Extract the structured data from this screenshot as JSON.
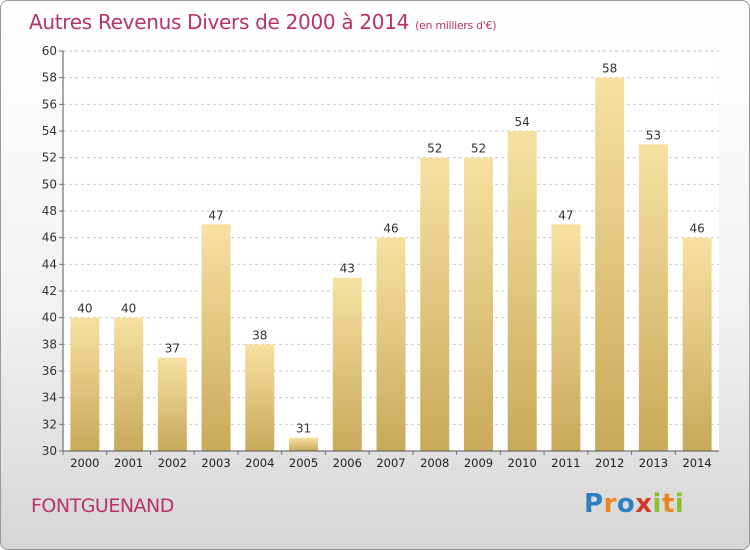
{
  "title": "Autres Revenus Divers de 2000 à 2014",
  "unit_note": "(en milliers d'€)",
  "location": "FONTGUENAND",
  "brand": {
    "letters": [
      "P",
      "r",
      "o",
      "x",
      "i",
      "t",
      "i"
    ],
    "colors": [
      "#2f7fc1",
      "#e8871e",
      "#2f7fc1",
      "#d23a2a",
      "#8bbf2e",
      "#e8871e",
      "#8bbf2e"
    ]
  },
  "colors": {
    "title": "#b8326a",
    "bar_light": "#f7e1a1",
    "bar_dark": "#c9a95a",
    "grid": "#cccccc"
  },
  "chart_data": {
    "type": "bar",
    "categories": [
      "2000",
      "2001",
      "2002",
      "2003",
      "2004",
      "2005",
      "2006",
      "2007",
      "2008",
      "2009",
      "2010",
      "2011",
      "2012",
      "2013",
      "2014"
    ],
    "values": [
      40,
      40,
      37,
      47,
      38,
      31,
      43,
      46,
      52,
      52,
      54,
      47,
      58,
      53,
      46
    ],
    "ylim": [
      30,
      60
    ],
    "yticks": [
      30,
      32,
      34,
      36,
      38,
      40,
      42,
      44,
      46,
      48,
      50,
      52,
      54,
      56,
      58,
      60
    ],
    "grid": true,
    "data_labels": true
  }
}
